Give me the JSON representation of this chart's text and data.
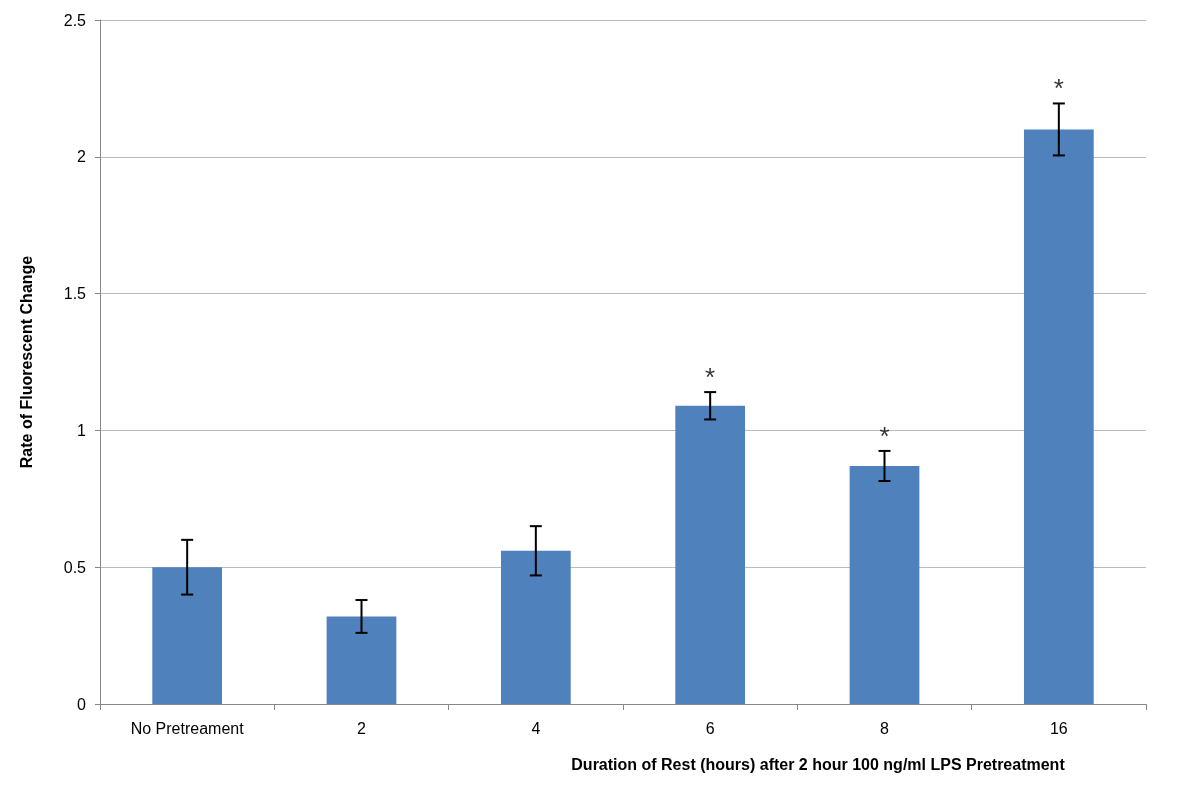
{
  "chart_data": {
    "type": "bar",
    "xlabel": "Duration of Rest (hours) after 2 hour 100 ng/ml LPS Pretreatment",
    "ylabel": "Rate of Fluorescent Change",
    "categories": [
      "No Pretreament",
      "2",
      "4",
      "6",
      "8",
      "16"
    ],
    "values": [
      0.5,
      0.32,
      0.56,
      1.09,
      0.87,
      2.1
    ],
    "errors": [
      0.1,
      0.06,
      0.09,
      0.05,
      0.055,
      0.095
    ],
    "color": "#4f81bd",
    "ylim": [
      0,
      2.5
    ],
    "yticks": [
      0,
      0.5,
      1,
      1.5,
      2,
      2.5
    ],
    "grid": "y",
    "annotations": [
      {
        "text": "*",
        "x": "6",
        "y": 1.14
      },
      {
        "text": "*",
        "x": "8",
        "y": 0.925
      },
      {
        "text": "*",
        "x": "16",
        "y": 2.195
      }
    ]
  }
}
